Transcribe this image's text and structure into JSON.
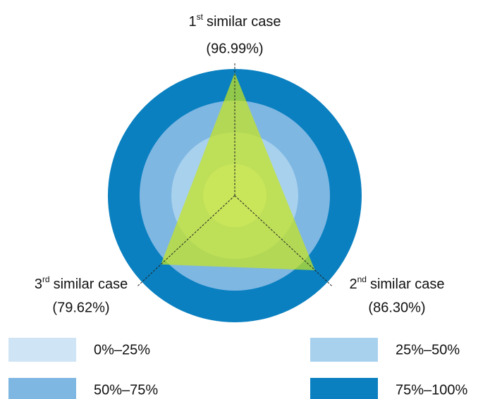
{
  "chart_data": {
    "type": "radar",
    "categories": [
      {
        "number": "1",
        "suffix": "st",
        "text": "similar case"
      },
      {
        "number": "2",
        "suffix": "nd",
        "text": "similar case"
      },
      {
        "number": "3",
        "suffix": "rd",
        "text": "similar case"
      }
    ],
    "values": [
      96.99,
      86.3,
      79.62
    ],
    "value_labels": [
      "(96.99%)",
      "(86.30%)",
      "(79.62%)"
    ],
    "color": "#c6e41e",
    "rlim": [
      0,
      100
    ],
    "bands": [
      {
        "label": "0%–25%",
        "from": 0,
        "to": 25,
        "color": "#cfe4f5"
      },
      {
        "label": "25%–50%",
        "from": 25,
        "to": 50,
        "color": "#a8d1ed"
      },
      {
        "label": "50%–75%",
        "from": 50,
        "to": 75,
        "color": "#7fb7e3"
      },
      {
        "label": "75%–100%",
        "from": 75,
        "to": 100,
        "color": "#0a80c0"
      }
    ]
  }
}
